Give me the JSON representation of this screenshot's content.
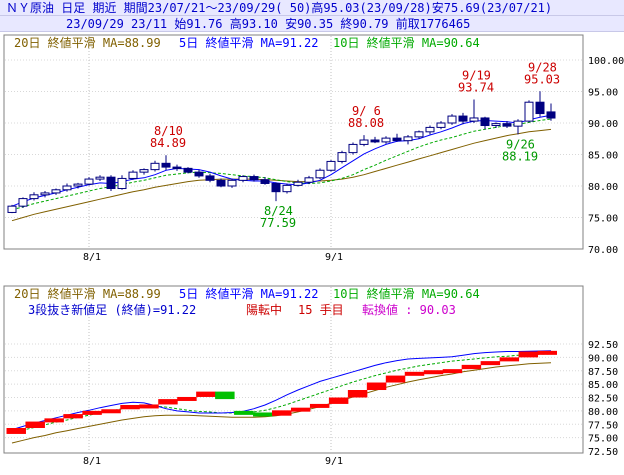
{
  "header": {
    "line1": "ＮＹ原油 日足 期近 期間23/07/21～23/09/29( 50)高95.03(23/09/28)安75.69(23/07/21)",
    "line2": "23/09/29 23/11 始91.76 高93.10 安90.35 終90.79 前取1776465"
  },
  "legend": {
    "ma20": "20日 終値平滑 MA=88.99",
    "ma5": "5日 終値平滑 MA=91.22",
    "ma10": "10日 終値平滑 MA=90.64"
  },
  "kagi_info": {
    "line": "3段抜き新値足 (終値)=91.22",
    "state": "陽転中",
    "count": "15 手目",
    "conv": "転換値 : 90.03"
  },
  "colors": {
    "up": "#ffffff",
    "down": "#000080",
    "ma5": "#0000ff",
    "ma10": "#00aa00",
    "ma20": "#806000",
    "kagi_up": "#ff0000",
    "kagi_down": "#00c000",
    "annot_high": "#cc0000",
    "annot_low": "#009900"
  },
  "chart_data": [
    {
      "type": "candlestick",
      "ylim": [
        70,
        100
      ],
      "yticks": [
        "100.00",
        "95.00",
        "90.00",
        "85.00",
        "80.00",
        "75.00",
        "70.00"
      ],
      "yticks_values": [
        100,
        95,
        90,
        85,
        80,
        75,
        70
      ],
      "xticks": [
        "8/1",
        "9/1"
      ],
      "xticks_index": [
        7,
        29
      ],
      "annotations": [
        {
          "date": "8/10",
          "value": "84.89",
          "index": 14,
          "y": 84.89,
          "color": "high"
        },
        {
          "date": "8/24",
          "value": "77.59",
          "index": 24,
          "y": 77.59,
          "color": "low"
        },
        {
          "date": "9/ 6",
          "value": "88.08",
          "index": 32,
          "y": 88.08,
          "color": "high"
        },
        {
          "date": "9/19",
          "value": "93.74",
          "index": 42,
          "y": 93.74,
          "color": "high"
        },
        {
          "date": "9/26",
          "value": "88.19",
          "index": 46,
          "y": 88.19,
          "color": "low"
        },
        {
          "date": "9/28",
          "value": "95.03",
          "index": 48,
          "y": 95.03,
          "color": "high"
        }
      ],
      "candles": [
        [
          75.8,
          77.0,
          75.69,
          76.8
        ],
        [
          76.8,
          78.2,
          76.5,
          78.0
        ],
        [
          78.0,
          79.0,
          77.7,
          78.6
        ],
        [
          78.6,
          79.2,
          78.2,
          78.9
        ],
        [
          78.9,
          79.6,
          78.6,
          79.4
        ],
        [
          79.4,
          80.4,
          79.1,
          80.0
        ],
        [
          80.0,
          80.5,
          79.6,
          80.3
        ],
        [
          80.3,
          81.4,
          80.1,
          81.1
        ],
        [
          81.1,
          81.7,
          80.8,
          81.4
        ],
        [
          81.4,
          81.7,
          79.2,
          79.6
        ],
        [
          79.6,
          81.7,
          79.4,
          81.2
        ],
        [
          81.2,
          82.5,
          81.0,
          82.2
        ],
        [
          82.2,
          82.8,
          81.8,
          82.6
        ],
        [
          82.6,
          84.0,
          82.3,
          83.6
        ],
        [
          83.6,
          84.89,
          82.5,
          83.0
        ],
        [
          83.0,
          83.4,
          82.4,
          82.8
        ],
        [
          82.8,
          83.0,
          82.0,
          82.2
        ],
        [
          82.2,
          82.6,
          81.3,
          81.6
        ],
        [
          81.6,
          81.9,
          80.6,
          80.9
        ],
        [
          80.9,
          81.2,
          79.8,
          80.0
        ],
        [
          80.0,
          81.2,
          79.7,
          80.9
        ],
        [
          80.9,
          81.7,
          80.6,
          81.5
        ],
        [
          81.5,
          81.8,
          80.7,
          81.0
        ],
        [
          81.0,
          81.4,
          80.2,
          80.4
        ],
        [
          80.4,
          80.6,
          77.59,
          79.1
        ],
        [
          79.1,
          80.4,
          78.8,
          80.1
        ],
        [
          80.1,
          81.0,
          79.9,
          80.6
        ],
        [
          80.6,
          81.6,
          80.3,
          81.3
        ],
        [
          81.3,
          82.8,
          81.1,
          82.5
        ],
        [
          82.5,
          84.1,
          82.3,
          83.9
        ],
        [
          83.9,
          85.6,
          83.6,
          85.3
        ],
        [
          85.3,
          86.9,
          85.0,
          86.6
        ],
        [
          86.6,
          88.08,
          86.3,
          87.3
        ],
        [
          87.3,
          87.8,
          86.8,
          87.0
        ],
        [
          87.0,
          87.9,
          86.7,
          87.6
        ],
        [
          87.6,
          88.3,
          87.0,
          87.2
        ],
        [
          87.2,
          88.1,
          86.6,
          87.8
        ],
        [
          87.8,
          88.8,
          87.5,
          88.6
        ],
        [
          88.6,
          89.6,
          88.2,
          89.3
        ],
        [
          89.3,
          90.3,
          89.0,
          90.0
        ],
        [
          90.0,
          91.4,
          89.7,
          91.1
        ],
        [
          91.1,
          91.6,
          89.8,
          90.3
        ],
        [
          90.3,
          93.74,
          90.0,
          90.8
        ],
        [
          90.8,
          91.0,
          89.0,
          89.6
        ],
        [
          89.6,
          90.1,
          89.2,
          89.9
        ],
        [
          89.9,
          90.3,
          89.2,
          89.5
        ],
        [
          89.5,
          90.6,
          88.19,
          90.3
        ],
        [
          90.3,
          93.6,
          90.1,
          93.3
        ],
        [
          93.3,
          95.03,
          91.0,
          91.5
        ],
        [
          91.76,
          93.1,
          90.35,
          90.79
        ]
      ],
      "ma5": [
        76.8,
        77.5,
        78.1,
        78.5,
        78.9,
        79.4,
        79.8,
        80.2,
        80.5,
        80.4,
        80.7,
        81.1,
        81.3,
        81.8,
        82.5,
        82.8,
        82.7,
        82.6,
        82.2,
        81.6,
        81.1,
        80.9,
        80.8,
        80.8,
        80.5,
        80.3,
        80.2,
        80.5,
        80.9,
        81.8,
        82.9,
        84.0,
        85.1,
        85.9,
        86.6,
        87.1,
        87.2,
        87.5,
        88.1,
        88.6,
        89.2,
        89.9,
        90.3,
        90.4,
        90.3,
        90.2,
        90.0,
        90.5,
        90.9,
        91.22
      ],
      "ma10": [
        76.2,
        76.7,
        77.2,
        77.6,
        78.0,
        78.4,
        78.8,
        79.2,
        79.6,
        79.9,
        80.2,
        80.6,
        80.9,
        81.3,
        81.7,
        81.9,
        82.1,
        82.2,
        82.1,
        82.0,
        81.8,
        81.6,
        81.5,
        81.3,
        81.0,
        80.7,
        80.5,
        80.4,
        80.5,
        80.8,
        81.2,
        81.8,
        82.6,
        83.3,
        84.1,
        84.8,
        85.5,
        86.2,
        86.8,
        87.3,
        87.7,
        88.2,
        88.7,
        89.0,
        89.3,
        89.6,
        89.8,
        90.1,
        90.4,
        90.64
      ],
      "ma20": [
        74.5,
        75.0,
        75.5,
        75.9,
        76.3,
        76.7,
        77.1,
        77.5,
        77.9,
        78.3,
        78.7,
        79.1,
        79.4,
        79.8,
        80.1,
        80.4,
        80.7,
        80.9,
        81.0,
        81.1,
        81.1,
        81.1,
        81.1,
        81.0,
        80.9,
        80.8,
        80.7,
        80.7,
        80.8,
        80.9,
        81.1,
        81.4,
        81.8,
        82.3,
        82.8,
        83.3,
        83.8,
        84.3,
        84.8,
        85.3,
        85.8,
        86.3,
        86.8,
        87.2,
        87.6,
        88.0,
        88.3,
        88.6,
        88.8,
        88.99
      ]
    },
    {
      "type": "kagi",
      "ylim": [
        72.5,
        92.5
      ],
      "yticks": [
        "92.50",
        "90.00",
        "87.50",
        "85.00",
        "82.50",
        "80.00",
        "77.50",
        "75.00",
        "72.50"
      ],
      "yticks_values": [
        92.5,
        90,
        87.5,
        85,
        82.5,
        80,
        77.5,
        75,
        72.5
      ],
      "xticks": [
        "8/1",
        "9/1"
      ],
      "xticks_index": [
        7,
        29
      ],
      "bricks": [
        {
          "lo": 75.69,
          "hi": 76.8,
          "dir": "up"
        },
        {
          "lo": 76.8,
          "hi": 78.0,
          "dir": "up"
        },
        {
          "lo": 78.0,
          "hi": 78.6,
          "dir": "up"
        },
        {
          "lo": 78.6,
          "hi": 79.4,
          "dir": "up"
        },
        {
          "lo": 79.4,
          "hi": 80.0,
          "dir": "up"
        },
        {
          "lo": 80.0,
          "hi": 80.3,
          "dir": "up"
        },
        {
          "lo": 80.3,
          "hi": 81.1,
          "dir": "up"
        },
        {
          "lo": 81.1,
          "hi": 81.2,
          "dir": "up"
        },
        {
          "lo": 81.2,
          "hi": 82.2,
          "dir": "up"
        },
        {
          "lo": 82.2,
          "hi": 82.6,
          "dir": "up"
        },
        {
          "lo": 82.6,
          "hi": 83.6,
          "dir": "up"
        },
        {
          "lo": 82.2,
          "hi": 83.6,
          "dir": "down"
        },
        {
          "lo": 79.7,
          "hi": 80.0,
          "dir": "down"
        },
        {
          "lo": 79.1,
          "hi": 79.7,
          "dir": "down"
        },
        {
          "lo": 79.1,
          "hi": 80.1,
          "dir": "up"
        },
        {
          "lo": 80.1,
          "hi": 80.6,
          "dir": "up"
        },
        {
          "lo": 80.6,
          "hi": 81.3,
          "dir": "up"
        },
        {
          "lo": 81.3,
          "hi": 82.5,
          "dir": "up"
        },
        {
          "lo": 82.5,
          "hi": 83.9,
          "dir": "up"
        },
        {
          "lo": 83.9,
          "hi": 85.3,
          "dir": "up"
        },
        {
          "lo": 85.3,
          "hi": 86.6,
          "dir": "up"
        },
        {
          "lo": 86.6,
          "hi": 87.3,
          "dir": "up"
        },
        {
          "lo": 87.3,
          "hi": 87.6,
          "dir": "up"
        },
        {
          "lo": 87.6,
          "hi": 87.8,
          "dir": "up"
        },
        {
          "lo": 87.8,
          "hi": 88.6,
          "dir": "up"
        },
        {
          "lo": 88.6,
          "hi": 89.3,
          "dir": "up"
        },
        {
          "lo": 89.3,
          "hi": 90.0,
          "dir": "up"
        },
        {
          "lo": 90.0,
          "hi": 91.1,
          "dir": "up"
        },
        {
          "lo": 91.1,
          "hi": 91.22,
          "dir": "up"
        }
      ],
      "ma5": [
        76.5,
        77.1,
        77.7,
        78.2,
        78.7,
        79.2,
        79.7,
        80.1,
        80.6,
        81.0,
        81.4,
        81.6,
        81.5,
        81.0,
        80.4,
        80.0,
        79.8,
        79.6,
        79.6,
        79.6,
        79.7,
        79.9,
        80.4,
        81.1,
        82.0,
        83.0,
        83.9,
        84.7,
        85.5,
        86.1,
        86.7,
        87.3,
        87.9,
        88.5,
        89.0,
        89.4,
        89.7,
        89.8,
        89.9,
        90.0,
        90.1,
        90.4,
        90.7,
        90.9,
        91.0,
        91.1,
        91.1,
        91.15,
        91.2,
        91.22
      ],
      "ma10": [
        75.9,
        76.4,
        76.9,
        77.4,
        77.9,
        78.3,
        78.8,
        79.2,
        79.6,
        80.0,
        80.4,
        80.7,
        80.9,
        80.9,
        80.7,
        80.4,
        80.1,
        79.9,
        79.8,
        79.6,
        79.6,
        79.6,
        79.8,
        80.1,
        80.6,
        81.2,
        81.9,
        82.6,
        83.3,
        84.0,
        84.7,
        85.4,
        86.0,
        86.6,
        87.1,
        87.6,
        88.0,
        88.4,
        88.7,
        89.0,
        89.3,
        89.5,
        89.7,
        89.9,
        90.1,
        90.2,
        90.4,
        90.5,
        90.6,
        90.64
      ],
      "ma20": [
        74.0,
        74.5,
        75.0,
        75.4,
        75.9,
        76.3,
        76.7,
        77.1,
        77.5,
        77.9,
        78.3,
        78.6,
        78.9,
        79.1,
        79.2,
        79.2,
        79.2,
        79.1,
        79.0,
        78.9,
        78.8,
        78.8,
        78.8,
        78.9,
        79.1,
        79.4,
        79.8,
        80.3,
        80.8,
        81.4,
        82.0,
        82.6,
        83.2,
        83.8,
        84.4,
        84.9,
        85.4,
        85.8,
        86.2,
        86.6,
        86.9,
        87.3,
        87.6,
        87.9,
        88.2,
        88.4,
        88.6,
        88.8,
        88.9,
        88.99
      ]
    }
  ]
}
